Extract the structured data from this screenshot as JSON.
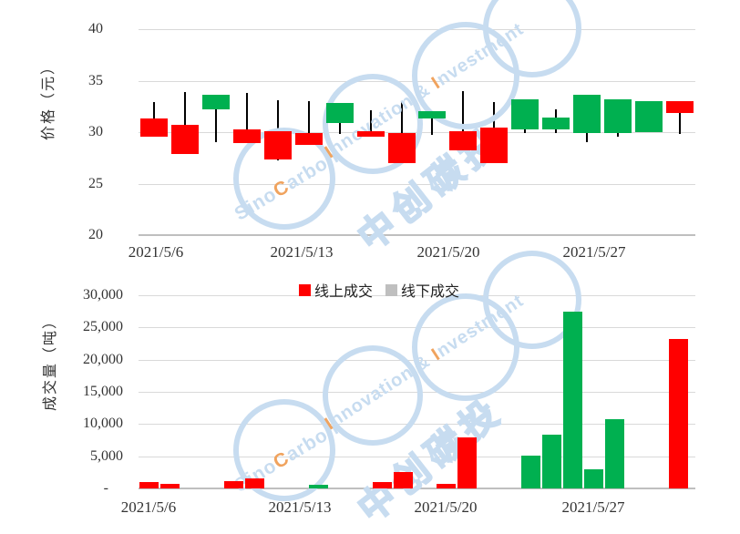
{
  "watermark": {
    "cjk": "中创碳投",
    "brand_line1": [
      {
        "t": "Sino",
        "c": "blue"
      },
      {
        "t": "C",
        "c": "orange"
      },
      {
        "t": "arbon",
        "c": "blue"
      }
    ],
    "brand_line2": [
      {
        "t": "I",
        "c": "orange"
      },
      {
        "t": "nnovation & ",
        "c": "blue"
      },
      {
        "t": "I",
        "c": "orange"
      },
      {
        "t": "nvestment",
        "c": "blue"
      }
    ],
    "colors": {
      "blue": "#C7DCF0",
      "orange": "#F0A35E"
    }
  },
  "chart_data": [
    {
      "type": "candlestick",
      "title": "",
      "ylabel": "价格（元）",
      "ylim": [
        20,
        40
      ],
      "yticks": [
        20,
        25,
        30,
        35,
        40
      ],
      "ytick_labels": [
        "20",
        "25",
        "30",
        "35",
        "40"
      ],
      "xtick_labels": [
        "2021/5/6",
        "2021/5/13",
        "2021/5/20",
        "2021/5/27"
      ],
      "grid": true,
      "up_color": "#00B050",
      "down_color": "#FF0000",
      "candles": [
        {
          "open": 31.3,
          "high": 32.9,
          "low": 29.6,
          "close": 29.6
        },
        {
          "open": 30.7,
          "high": 33.9,
          "low": 27.9,
          "close": 27.9
        },
        {
          "open": 32.2,
          "high": 33.6,
          "low": 29.0,
          "close": 33.6
        },
        {
          "open": 30.3,
          "high": 33.8,
          "low": 28.9,
          "close": 28.9
        },
        {
          "open": 30.1,
          "high": 33.1,
          "low": 27.3,
          "close": 27.3
        },
        {
          "open": 29.9,
          "high": 33.0,
          "low": 28.8,
          "close": 28.8
        },
        {
          "open": 30.9,
          "high": 32.8,
          "low": 29.8,
          "close": 32.8
        },
        {
          "open": 30.1,
          "high": 32.1,
          "low": 29.6,
          "close": 29.6
        },
        {
          "open": 29.9,
          "high": 32.9,
          "low": 27.0,
          "close": 27.0
        },
        {
          "open": 31.3,
          "high": 32.0,
          "low": 29.7,
          "close": 32.0
        },
        {
          "open": 30.1,
          "high": 34.0,
          "low": 28.2,
          "close": 28.2
        },
        {
          "open": 30.4,
          "high": 32.9,
          "low": 27.0,
          "close": 27.0
        },
        {
          "open": 30.3,
          "high": 33.2,
          "low": 29.9,
          "close": 33.2
        },
        {
          "open": 30.3,
          "high": 32.2,
          "low": 29.9,
          "close": 31.4
        },
        {
          "open": 29.9,
          "high": 33.6,
          "low": 29.0,
          "close": 33.6
        },
        {
          "open": 29.9,
          "high": 33.2,
          "low": 29.6,
          "close": 33.2
        },
        {
          "open": 30.0,
          "high": 33.0,
          "low": 30.0,
          "close": 33.0
        },
        {
          "open": 33.0,
          "high": 33.0,
          "low": 29.8,
          "close": 31.9
        }
      ]
    },
    {
      "type": "bar",
      "title": "",
      "ylabel": "成交量（吨）",
      "ylim": [
        0,
        30000
      ],
      "yticks": [
        0,
        5000,
        10000,
        15000,
        20000,
        25000,
        30000
      ],
      "ytick_labels": [
        "-",
        "5,000",
        "10,000",
        "15,000",
        "20,000",
        "25,000",
        "30,000"
      ],
      "xtick_labels": [
        "2021/5/6",
        "2021/5/13",
        "2021/5/20",
        "2021/5/27"
      ],
      "grid": true,
      "legend": [
        {
          "label": "线上成交",
          "swatch_color": "#FF0000"
        },
        {
          "label": "线下成交",
          "swatch_color": "#BFBFBF"
        }
      ],
      "bar_colors": {
        "线上成交": "#FF0000",
        "线下成交": "#00B050"
      },
      "bars": [
        {
          "slot": 0,
          "value": 1000,
          "series": "线上成交"
        },
        {
          "slot": 1,
          "value": 700,
          "series": "线上成交"
        },
        {
          "slot": 4,
          "value": 1100,
          "series": "线上成交"
        },
        {
          "slot": 5,
          "value": 1500,
          "series": "线上成交"
        },
        {
          "slot": 8,
          "value": 600,
          "series": "线下成交"
        },
        {
          "slot": 11,
          "value": 1000,
          "series": "线上成交"
        },
        {
          "slot": 12,
          "value": 2600,
          "series": "线上成交"
        },
        {
          "slot": 14,
          "value": 700,
          "series": "线上成交"
        },
        {
          "slot": 15,
          "value": 7900,
          "series": "线上成交"
        },
        {
          "slot": 18,
          "value": 5100,
          "series": "线下成交"
        },
        {
          "slot": 19,
          "value": 8300,
          "series": "线下成交"
        },
        {
          "slot": 20,
          "value": 27400,
          "series": "线下成交"
        },
        {
          "slot": 21,
          "value": 3000,
          "series": "线下成交"
        },
        {
          "slot": 22,
          "value": 10700,
          "series": "线下成交"
        },
        {
          "slot": 25,
          "value": 23200,
          "series": "线上成交"
        }
      ]
    }
  ]
}
